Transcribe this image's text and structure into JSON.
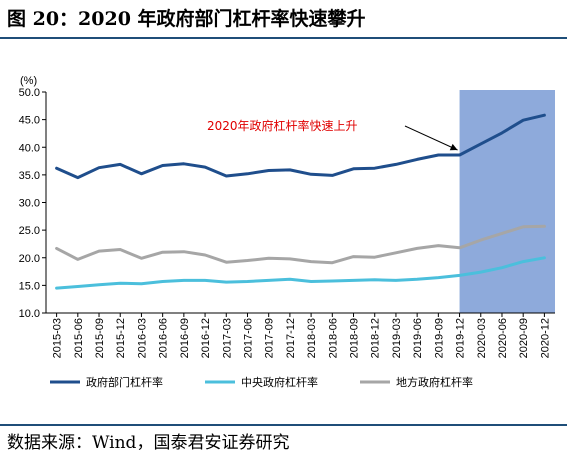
{
  "title": "图 20：2020 年政府部门杠杆率快速攀升",
  "source": "数据来源：Wind，国泰君安证券研究",
  "chart_data": {
    "type": "line",
    "unit_label": "(%)",
    "ylim": [
      10,
      50
    ],
    "yticks": [
      "10.0",
      "15.0",
      "20.0",
      "25.0",
      "30.0",
      "35.0",
      "40.0",
      "45.0",
      "50.0"
    ],
    "categories": [
      "2015-03",
      "2015-06",
      "2015-09",
      "2015-12",
      "2016-03",
      "2016-06",
      "2016-09",
      "2016-12",
      "2017-03",
      "2017-06",
      "2017-09",
      "2017-12",
      "2018-03",
      "2018-06",
      "2018-09",
      "2018-12",
      "2019-03",
      "2019-06",
      "2019-09",
      "2019-12",
      "2020-03",
      "2020-06",
      "2020-09",
      "2020-12"
    ],
    "series": [
      {
        "name": "政府部门杠杆率",
        "color": "#1f4e8c",
        "values": [
          36.2,
          34.5,
          36.3,
          36.9,
          35.2,
          36.7,
          37.0,
          36.4,
          34.8,
          35.2,
          35.8,
          35.9,
          35.1,
          34.9,
          36.1,
          36.2,
          36.9,
          37.8,
          38.6,
          38.6,
          40.6,
          42.6,
          44.9,
          45.8
        ]
      },
      {
        "name": "中央政府杠杆率",
        "color": "#4bbfdc",
        "values": [
          14.5,
          14.8,
          15.1,
          15.4,
          15.3,
          15.7,
          15.9,
          15.9,
          15.6,
          15.7,
          15.9,
          16.1,
          15.7,
          15.8,
          15.9,
          16.0,
          15.9,
          16.1,
          16.4,
          16.8,
          17.4,
          18.2,
          19.3,
          20.0
        ]
      },
      {
        "name": "地方政府杠杆率",
        "color": "#a6a6a6",
        "values": [
          21.7,
          19.7,
          21.2,
          21.5,
          19.9,
          21.0,
          21.1,
          20.5,
          19.2,
          19.5,
          19.9,
          19.8,
          19.3,
          19.1,
          20.2,
          20.1,
          20.9,
          21.7,
          22.2,
          21.8,
          23.2,
          24.4,
          25.6,
          25.7
        ]
      }
    ],
    "highlight": {
      "from": "2019-12",
      "to": "2020-12",
      "color": "#8eaadb"
    },
    "annotation": {
      "text": "2020年政府杠杆率快速上升",
      "target_category": "2019-12",
      "target_series": 0
    },
    "legend": "bottom",
    "grid": false
  }
}
